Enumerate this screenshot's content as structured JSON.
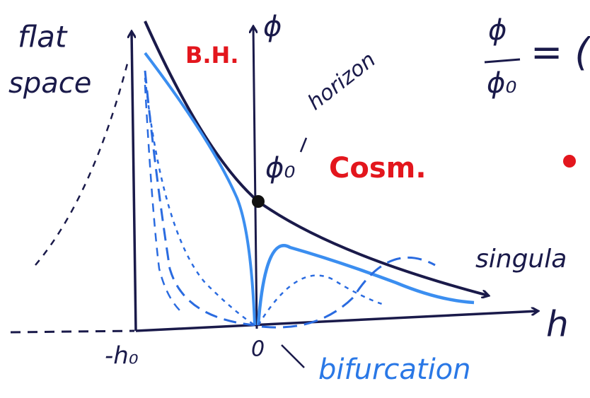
{
  "labels": {
    "flat": "flat",
    "space": "space",
    "bh": "B.H.",
    "phi_axis": "ϕ",
    "horizon": "horizon",
    "phi0": "ϕ₀",
    "cosm": "Cosm.",
    "singular": "singula",
    "h_axis": "h",
    "minus_h0": "-h₀",
    "zero": "0",
    "bifurcation": "bifurcation",
    "ratio_num": "ϕ",
    "ratio_den": "ϕ₀",
    "ratio_eq": "= ("
  }
}
